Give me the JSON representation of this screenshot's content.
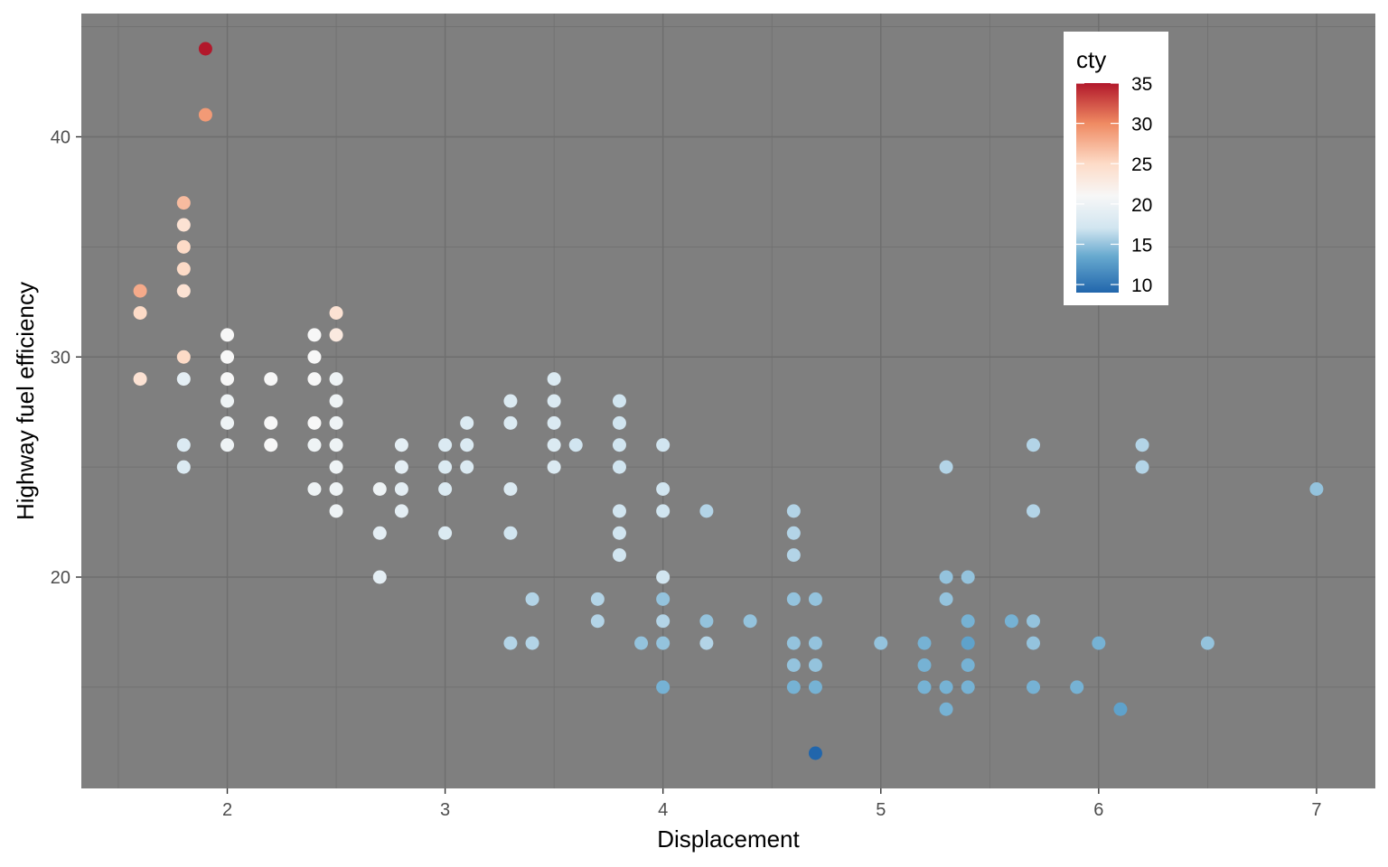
{
  "chart_data": {
    "type": "scatter",
    "xlabel": "Displacement",
    "ylabel": "Highway fuel efficiency",
    "xlim": [
      1.33,
      7.27
    ],
    "ylim": [
      10.4,
      45.6
    ],
    "x_ticks": [
      2,
      3,
      4,
      5,
      6,
      7
    ],
    "y_ticks": [
      20,
      30,
      40
    ],
    "background": "#7f7f7f",
    "grid": true,
    "color_scale": {
      "title": "cty",
      "range": [
        9,
        35
      ],
      "ticks": [
        10,
        15,
        20,
        25,
        30,
        35
      ],
      "stops": [
        {
          "value": 9,
          "color": "#2166ac"
        },
        {
          "value": 13.5,
          "color": "#67a9cf"
        },
        {
          "value": 17,
          "color": "#d1e5f0"
        },
        {
          "value": 21,
          "color": "#f7f7f7"
        },
        {
          "value": 25,
          "color": "#fddbc7"
        },
        {
          "value": 30,
          "color": "#ef8a62"
        },
        {
          "value": 35,
          "color": "#b2182b"
        }
      ],
      "legend_position": "top-right"
    },
    "points": [
      {
        "x": 1.6,
        "y": 29,
        "cty": 24
      },
      {
        "x": 1.6,
        "y": 32,
        "cty": 25
      },
      {
        "x": 1.6,
        "y": 33,
        "cty": 28
      },
      {
        "x": 1.8,
        "y": 25,
        "cty": 18
      },
      {
        "x": 1.8,
        "y": 26,
        "cty": 18
      },
      {
        "x": 1.8,
        "y": 29,
        "cty": 19
      },
      {
        "x": 1.8,
        "y": 30,
        "cty": 25
      },
      {
        "x": 1.8,
        "y": 33,
        "cty": 24
      },
      {
        "x": 1.8,
        "y": 34,
        "cty": 25
      },
      {
        "x": 1.8,
        "y": 35,
        "cty": 25
      },
      {
        "x": 1.8,
        "y": 36,
        "cty": 24
      },
      {
        "x": 1.8,
        "y": 37,
        "cty": 27
      },
      {
        "x": 1.9,
        "y": 41,
        "cty": 29
      },
      {
        "x": 1.9,
        "y": 44,
        "cty": 35
      },
      {
        "x": 2.0,
        "y": 26,
        "cty": 20
      },
      {
        "x": 2.0,
        "y": 27,
        "cty": 20
      },
      {
        "x": 2.0,
        "y": 28,
        "cty": 20
      },
      {
        "x": 2.0,
        "y": 29,
        "cty": 21
      },
      {
        "x": 2.0,
        "y": 30,
        "cty": 21
      },
      {
        "x": 2.0,
        "y": 31,
        "cty": 21
      },
      {
        "x": 2.2,
        "y": 26,
        "cty": 21
      },
      {
        "x": 2.2,
        "y": 27,
        "cty": 21
      },
      {
        "x": 2.2,
        "y": 29,
        "cty": 21
      },
      {
        "x": 2.4,
        "y": 24,
        "cty": 20
      },
      {
        "x": 2.4,
        "y": 26,
        "cty": 20
      },
      {
        "x": 2.4,
        "y": 27,
        "cty": 21
      },
      {
        "x": 2.4,
        "y": 29,
        "cty": 21
      },
      {
        "x": 2.4,
        "y": 30,
        "cty": 21
      },
      {
        "x": 2.4,
        "y": 31,
        "cty": 21
      },
      {
        "x": 2.5,
        "y": 23,
        "cty": 20
      },
      {
        "x": 2.5,
        "y": 24,
        "cty": 20
      },
      {
        "x": 2.5,
        "y": 25,
        "cty": 20
      },
      {
        "x": 2.5,
        "y": 26,
        "cty": 20
      },
      {
        "x": 2.5,
        "y": 27,
        "cty": 20
      },
      {
        "x": 2.5,
        "y": 28,
        "cty": 20
      },
      {
        "x": 2.5,
        "y": 29,
        "cty": 20
      },
      {
        "x": 2.5,
        "y": 31,
        "cty": 23
      },
      {
        "x": 2.5,
        "y": 32,
        "cty": 24
      },
      {
        "x": 2.7,
        "y": 20,
        "cty": 19
      },
      {
        "x": 2.7,
        "y": 22,
        "cty": 19
      },
      {
        "x": 2.7,
        "y": 24,
        "cty": 20
      },
      {
        "x": 2.8,
        "y": 23,
        "cty": 19
      },
      {
        "x": 2.8,
        "y": 24,
        "cty": 19
      },
      {
        "x": 2.8,
        "y": 25,
        "cty": 19
      },
      {
        "x": 2.8,
        "y": 26,
        "cty": 19
      },
      {
        "x": 3.0,
        "y": 22,
        "cty": 18
      },
      {
        "x": 3.0,
        "y": 24,
        "cty": 18
      },
      {
        "x": 3.0,
        "y": 25,
        "cty": 18
      },
      {
        "x": 3.0,
        "y": 26,
        "cty": 18
      },
      {
        "x": 3.1,
        "y": 25,
        "cty": 18
      },
      {
        "x": 3.1,
        "y": 26,
        "cty": 18
      },
      {
        "x": 3.1,
        "y": 27,
        "cty": 18
      },
      {
        "x": 3.3,
        "y": 17,
        "cty": 16
      },
      {
        "x": 3.3,
        "y": 22,
        "cty": 17
      },
      {
        "x": 3.3,
        "y": 24,
        "cty": 18
      },
      {
        "x": 3.3,
        "y": 27,
        "cty": 18
      },
      {
        "x": 3.3,
        "y": 28,
        "cty": 18
      },
      {
        "x": 3.4,
        "y": 17,
        "cty": 16
      },
      {
        "x": 3.4,
        "y": 19,
        "cty": 16
      },
      {
        "x": 3.5,
        "y": 25,
        "cty": 18
      },
      {
        "x": 3.5,
        "y": 26,
        "cty": 18
      },
      {
        "x": 3.5,
        "y": 27,
        "cty": 18
      },
      {
        "x": 3.5,
        "y": 28,
        "cty": 18
      },
      {
        "x": 3.5,
        "y": 29,
        "cty": 18
      },
      {
        "x": 3.6,
        "y": 26,
        "cty": 17
      },
      {
        "x": 3.7,
        "y": 18,
        "cty": 16
      },
      {
        "x": 3.7,
        "y": 19,
        "cty": 16
      },
      {
        "x": 3.8,
        "y": 21,
        "cty": 17
      },
      {
        "x": 3.8,
        "y": 22,
        "cty": 17
      },
      {
        "x": 3.8,
        "y": 23,
        "cty": 17
      },
      {
        "x": 3.8,
        "y": 25,
        "cty": 17
      },
      {
        "x": 3.8,
        "y": 26,
        "cty": 17
      },
      {
        "x": 3.8,
        "y": 27,
        "cty": 17
      },
      {
        "x": 3.8,
        "y": 28,
        "cty": 17
      },
      {
        "x": 3.9,
        "y": 17,
        "cty": 15
      },
      {
        "x": 4.0,
        "y": 15,
        "cty": 14
      },
      {
        "x": 4.0,
        "y": 17,
        "cty": 15
      },
      {
        "x": 4.0,
        "y": 18,
        "cty": 16
      },
      {
        "x": 4.0,
        "y": 19,
        "cty": 15
      },
      {
        "x": 4.0,
        "y": 20,
        "cty": 17
      },
      {
        "x": 4.0,
        "y": 23,
        "cty": 17
      },
      {
        "x": 4.0,
        "y": 24,
        "cty": 17
      },
      {
        "x": 4.0,
        "y": 26,
        "cty": 17
      },
      {
        "x": 4.2,
        "y": 17,
        "cty": 16
      },
      {
        "x": 4.2,
        "y": 18,
        "cty": 15
      },
      {
        "x": 4.2,
        "y": 23,
        "cty": 16
      },
      {
        "x": 4.4,
        "y": 18,
        "cty": 15
      },
      {
        "x": 4.6,
        "y": 15,
        "cty": 14
      },
      {
        "x": 4.6,
        "y": 16,
        "cty": 15
      },
      {
        "x": 4.6,
        "y": 17,
        "cty": 15
      },
      {
        "x": 4.6,
        "y": 19,
        "cty": 15
      },
      {
        "x": 4.6,
        "y": 21,
        "cty": 16
      },
      {
        "x": 4.6,
        "y": 22,
        "cty": 16
      },
      {
        "x": 4.6,
        "y": 23,
        "cty": 16
      },
      {
        "x": 4.7,
        "y": 12,
        "cty": 9
      },
      {
        "x": 4.7,
        "y": 15,
        "cty": 14
      },
      {
        "x": 4.7,
        "y": 16,
        "cty": 15
      },
      {
        "x": 4.7,
        "y": 17,
        "cty": 15
      },
      {
        "x": 4.7,
        "y": 19,
        "cty": 15
      },
      {
        "x": 5.0,
        "y": 17,
        "cty": 15
      },
      {
        "x": 5.2,
        "y": 15,
        "cty": 14
      },
      {
        "x": 5.2,
        "y": 16,
        "cty": 14
      },
      {
        "x": 5.2,
        "y": 17,
        "cty": 14
      },
      {
        "x": 5.3,
        "y": 14,
        "cty": 14
      },
      {
        "x": 5.3,
        "y": 15,
        "cty": 14
      },
      {
        "x": 5.3,
        "y": 19,
        "cty": 15
      },
      {
        "x": 5.3,
        "y": 20,
        "cty": 15
      },
      {
        "x": 5.3,
        "y": 25,
        "cty": 16
      },
      {
        "x": 5.4,
        "y": 15,
        "cty": 14
      },
      {
        "x": 5.4,
        "y": 16,
        "cty": 14
      },
      {
        "x": 5.4,
        "y": 17,
        "cty": 13
      },
      {
        "x": 5.4,
        "y": 18,
        "cty": 14
      },
      {
        "x": 5.4,
        "y": 20,
        "cty": 15
      },
      {
        "x": 5.6,
        "y": 18,
        "cty": 14
      },
      {
        "x": 5.7,
        "y": 15,
        "cty": 14
      },
      {
        "x": 5.7,
        "y": 17,
        "cty": 15
      },
      {
        "x": 5.7,
        "y": 18,
        "cty": 15
      },
      {
        "x": 5.7,
        "y": 23,
        "cty": 16
      },
      {
        "x": 5.7,
        "y": 26,
        "cty": 16
      },
      {
        "x": 5.9,
        "y": 15,
        "cty": 14
      },
      {
        "x": 6.0,
        "y": 17,
        "cty": 14
      },
      {
        "x": 6.1,
        "y": 14,
        "cty": 13
      },
      {
        "x": 6.2,
        "y": 25,
        "cty": 16
      },
      {
        "x": 6.2,
        "y": 26,
        "cty": 16
      },
      {
        "x": 6.5,
        "y": 17,
        "cty": 15
      },
      {
        "x": 7.0,
        "y": 24,
        "cty": 15
      }
    ]
  }
}
